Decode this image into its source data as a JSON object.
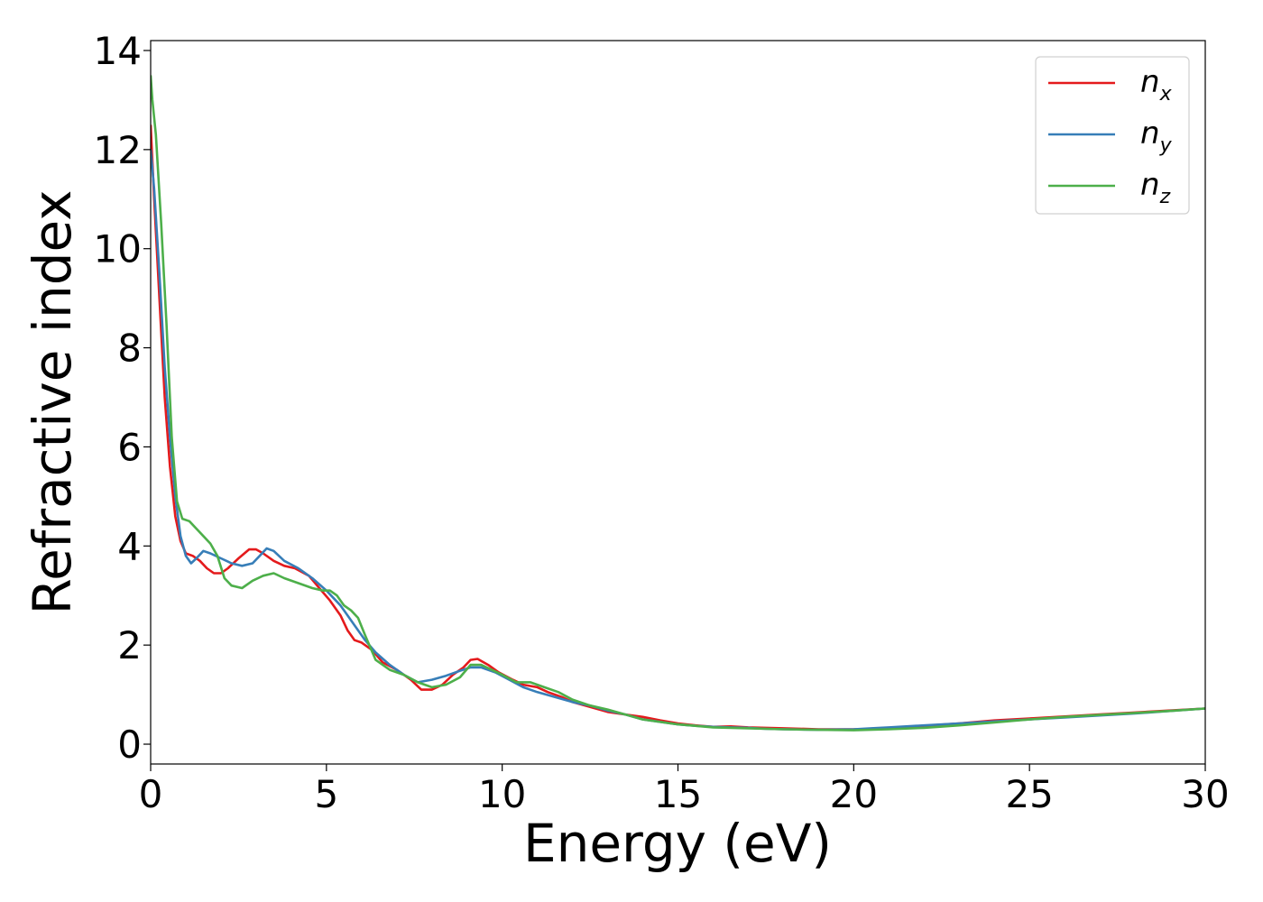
{
  "chart_data": {
    "type": "line",
    "title": "",
    "xlabel": "Energy (eV)",
    "ylabel": "Refractive index",
    "xlim": [
      0,
      30
    ],
    "ylim": [
      -0.4,
      14.2
    ],
    "xticks": [
      0,
      5,
      10,
      15,
      20,
      25,
      30
    ],
    "yticks": [
      0,
      2,
      4,
      6,
      8,
      10,
      12,
      14
    ],
    "grid": false,
    "legend_position": "top-right",
    "series": [
      {
        "name": "n",
        "subscript": "x",
        "color": "#e41a1c",
        "x": [
          0,
          0.1,
          0.25,
          0.4,
          0.55,
          0.7,
          0.85,
          1.0,
          1.2,
          1.4,
          1.6,
          1.8,
          2.0,
          2.2,
          2.5,
          2.8,
          3.0,
          3.2,
          3.5,
          3.8,
          4.1,
          4.5,
          4.8,
          5.1,
          5.4,
          5.6,
          5.8,
          6.0,
          6.3,
          6.6,
          7.0,
          7.4,
          7.7,
          8.0,
          8.3,
          8.6,
          8.9,
          9.1,
          9.3,
          9.6,
          9.9,
          10.3,
          10.6,
          11.0,
          11.3,
          11.7,
          12.0,
          12.5,
          13.0,
          13.5,
          14.0,
          14.5,
          15.0,
          15.5,
          16.0,
          16.5,
          17.0,
          17.5,
          18.0,
          19.0,
          20.0,
          20.5,
          21.0,
          22.0,
          23.0,
          24.0,
          25.0,
          26.0,
          27.0,
          28.0,
          29.0,
          30.0
        ],
        "y": [
          12.5,
          11.0,
          9.0,
          7.0,
          5.6,
          4.6,
          4.1,
          3.85,
          3.8,
          3.7,
          3.55,
          3.45,
          3.45,
          3.55,
          3.75,
          3.93,
          3.93,
          3.85,
          3.7,
          3.6,
          3.55,
          3.4,
          3.15,
          2.9,
          2.6,
          2.3,
          2.1,
          2.05,
          1.9,
          1.65,
          1.5,
          1.3,
          1.1,
          1.1,
          1.2,
          1.4,
          1.55,
          1.7,
          1.72,
          1.6,
          1.45,
          1.3,
          1.2,
          1.15,
          1.05,
          0.95,
          0.85,
          0.75,
          0.65,
          0.6,
          0.55,
          0.48,
          0.42,
          0.38,
          0.35,
          0.36,
          0.34,
          0.33,
          0.32,
          0.3,
          0.3,
          0.31,
          0.33,
          0.37,
          0.42,
          0.48,
          0.52,
          0.56,
          0.6,
          0.64,
          0.68,
          0.72
        ]
      },
      {
        "name": "n",
        "subscript": "y",
        "color": "#377eb8",
        "x": [
          0,
          0.1,
          0.25,
          0.4,
          0.55,
          0.7,
          0.85,
          1.0,
          1.15,
          1.3,
          1.5,
          1.7,
          2.0,
          2.3,
          2.6,
          2.9,
          3.1,
          3.3,
          3.5,
          3.8,
          4.2,
          4.6,
          5.0,
          5.4,
          5.8,
          6.1,
          6.4,
          6.8,
          7.2,
          7.6,
          8.0,
          8.4,
          8.8,
          9.1,
          9.4,
          9.8,
          10.2,
          10.6,
          11.0,
          11.5,
          12.0,
          12.5,
          13.0,
          13.5,
          14.0,
          14.5,
          15.0,
          15.5,
          16.0,
          16.5,
          17.0,
          17.5,
          18.0,
          19.0,
          20.0,
          20.5,
          21.0,
          22.0,
          23.0,
          24.0,
          25.0,
          26.0,
          27.0,
          28.0,
          29.0,
          30.0
        ],
        "y": [
          12.0,
          11.2,
          9.5,
          7.6,
          6.2,
          5.0,
          4.2,
          3.8,
          3.65,
          3.75,
          3.9,
          3.85,
          3.75,
          3.65,
          3.6,
          3.65,
          3.8,
          3.95,
          3.9,
          3.7,
          3.55,
          3.35,
          3.1,
          2.8,
          2.4,
          2.1,
          1.85,
          1.6,
          1.4,
          1.25,
          1.3,
          1.38,
          1.48,
          1.55,
          1.55,
          1.45,
          1.3,
          1.15,
          1.05,
          0.95,
          0.85,
          0.78,
          0.68,
          0.6,
          0.5,
          0.45,
          0.4,
          0.37,
          0.35,
          0.34,
          0.33,
          0.31,
          0.3,
          0.29,
          0.3,
          0.32,
          0.34,
          0.38,
          0.42,
          0.46,
          0.5,
          0.54,
          0.58,
          0.62,
          0.67,
          0.72
        ]
      },
      {
        "name": "n",
        "subscript": "z",
        "color": "#4daf4a",
        "x": [
          0,
          0.05,
          0.15,
          0.3,
          0.45,
          0.6,
          0.75,
          0.9,
          1.1,
          1.3,
          1.5,
          1.7,
          1.9,
          2.1,
          2.3,
          2.6,
          2.9,
          3.2,
          3.5,
          3.8,
          4.2,
          4.6,
          4.9,
          5.1,
          5.3,
          5.5,
          5.7,
          5.9,
          6.1,
          6.4,
          6.8,
          7.2,
          7.6,
          8.0,
          8.4,
          8.8,
          9.1,
          9.4,
          9.7,
          10.0,
          10.4,
          10.8,
          11.2,
          11.6,
          12.0,
          12.5,
          13.0,
          13.5,
          14.0,
          15.0,
          16.0,
          17.0,
          18.0,
          19.0,
          20.0,
          21.0,
          22.0,
          23.0,
          24.0,
          25.0,
          26.0,
          27.0,
          28.0,
          29.0,
          30.0
        ],
        "y": [
          13.5,
          13.0,
          12.3,
          10.5,
          8.5,
          6.2,
          4.9,
          4.55,
          4.5,
          4.35,
          4.2,
          4.05,
          3.8,
          3.35,
          3.2,
          3.15,
          3.3,
          3.4,
          3.45,
          3.35,
          3.25,
          3.15,
          3.1,
          3.1,
          3.0,
          2.8,
          2.7,
          2.55,
          2.2,
          1.7,
          1.5,
          1.4,
          1.25,
          1.15,
          1.2,
          1.35,
          1.6,
          1.6,
          1.5,
          1.4,
          1.25,
          1.25,
          1.15,
          1.05,
          0.9,
          0.78,
          0.7,
          0.6,
          0.5,
          0.4,
          0.34,
          0.32,
          0.3,
          0.29,
          0.28,
          0.3,
          0.33,
          0.38,
          0.44,
          0.5,
          0.55,
          0.59,
          0.63,
          0.67,
          0.72
        ]
      }
    ]
  }
}
